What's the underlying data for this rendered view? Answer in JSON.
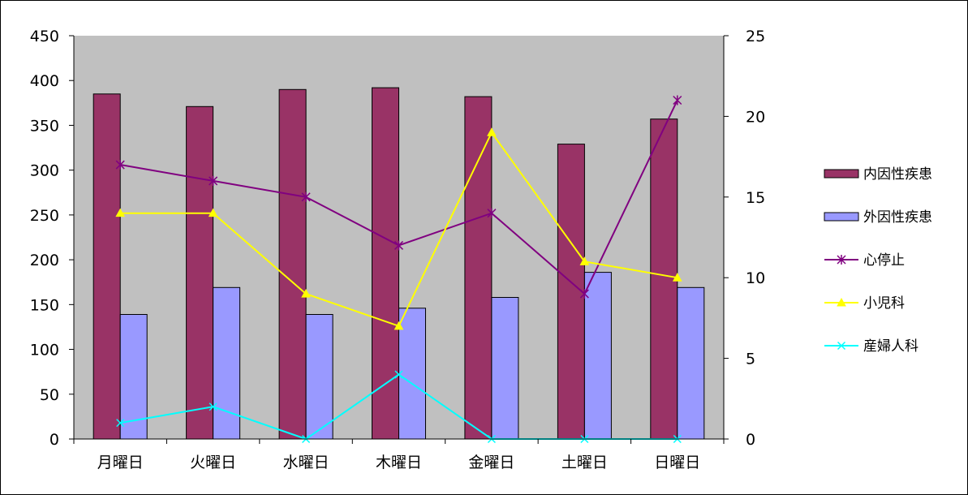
{
  "chart_data": {
    "type": "bar",
    "categories": [
      "月曜日",
      "火曜日",
      "水曜日",
      "木曜日",
      "金曜日",
      "土曜日",
      "日曜日"
    ],
    "y_left": {
      "range": [
        0,
        450
      ],
      "ticks": [
        0,
        50,
        100,
        150,
        200,
        250,
        300,
        350,
        400,
        450
      ]
    },
    "y_right": {
      "range": [
        0,
        25
      ],
      "ticks": [
        0,
        5,
        10,
        15,
        20,
        25
      ]
    },
    "series": [
      {
        "name": "内因性疾患",
        "type": "bar",
        "axis": "left",
        "color": "#993366",
        "values": [
          385,
          371,
          390,
          392,
          382,
          329,
          357
        ]
      },
      {
        "name": "外因性疾患",
        "type": "bar",
        "axis": "left",
        "color": "#9999ff",
        "values": [
          139,
          169,
          139,
          146,
          158,
          186,
          169
        ]
      },
      {
        "name": "心停止",
        "type": "line",
        "axis": "right",
        "marker": "star",
        "color": "#800080",
        "values": [
          17,
          16,
          15,
          12,
          14,
          9,
          21
        ]
      },
      {
        "name": "小児科",
        "type": "line",
        "axis": "right",
        "marker": "triangle",
        "color": "#ffff00",
        "values": [
          14,
          14,
          9,
          7,
          19,
          11,
          10
        ]
      },
      {
        "name": "産婦人科",
        "type": "line",
        "axis": "right",
        "marker": "x",
        "color": "#00ffff",
        "values": [
          1,
          2,
          0,
          4,
          0,
          0,
          0
        ]
      }
    ],
    "plot_background": "#c0c0c0",
    "grid": false,
    "legend_position": "right"
  }
}
